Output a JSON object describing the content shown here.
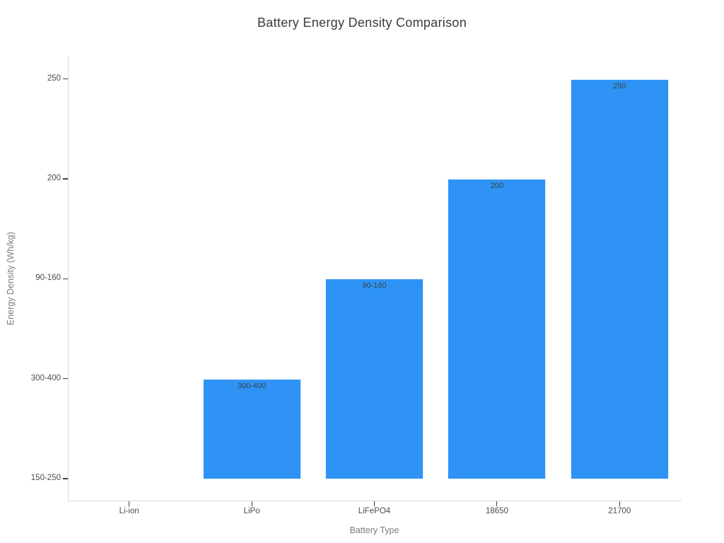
{
  "chart_data": {
    "type": "bar",
    "title": "Battery Energy Density Comparison",
    "xlabel": "Battery Type",
    "ylabel": "Energy Density (Wh/kg)",
    "categories": [
      "Li-ion",
      "LiPo",
      "LiFePO4",
      "18650",
      "21700"
    ],
    "values": [
      "150-250",
      "300-400",
      "90-160",
      "200",
      "250"
    ],
    "bar_labels": [
      "",
      "300-400",
      "90-160",
      "200",
      "250"
    ],
    "y_axis_type": "category",
    "y_tick_labels_bottom_to_top": [
      "150-250",
      "300-400",
      "90-160",
      "200",
      "250"
    ],
    "bar_color": "#2e93f5",
    "grid": false,
    "legend": "none"
  }
}
